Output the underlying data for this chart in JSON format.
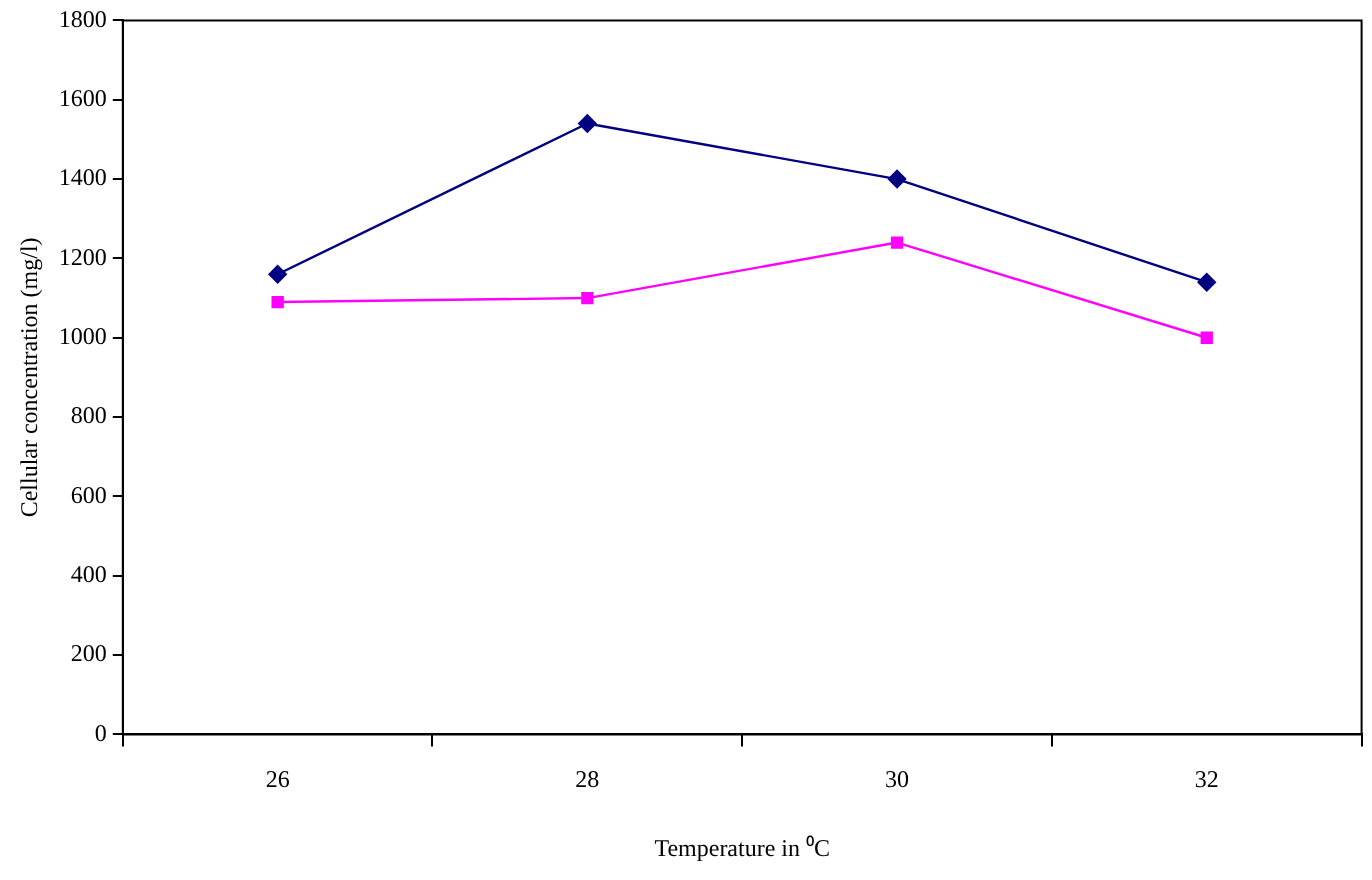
{
  "chart_data": {
    "type": "line",
    "xlabel": "Temperature in ⁰C",
    "ylabel": "Cellular concentration (mg/l)",
    "categories": [
      "26",
      "28",
      "30",
      "32"
    ],
    "series": [
      {
        "color": "#000080",
        "marker": "diamond",
        "values": [
          1160,
          1540,
          1400,
          1140
        ]
      },
      {
        "color": "#ff00ff",
        "marker": "square",
        "values": [
          1090,
          1100,
          1240,
          1000
        ]
      }
    ],
    "ylim": [
      0,
      1800
    ],
    "yticks": [
      0,
      200,
      400,
      600,
      800,
      1000,
      1200,
      1400,
      1600,
      1800
    ],
    "grid": false,
    "legend": false
  }
}
